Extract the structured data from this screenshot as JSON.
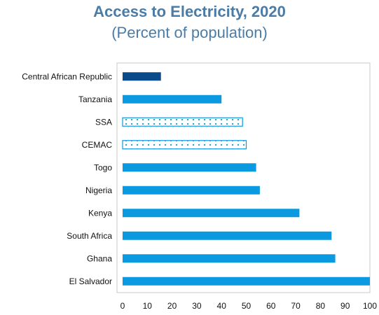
{
  "chart_data": {
    "type": "bar",
    "orientation": "horizontal",
    "title": "Access to Electricity, 2020",
    "subtitle": "(Percent of population)",
    "categories": [
      "Central African Republic",
      "Tanzania",
      "SSA",
      "CEMAC",
      "Togo",
      "Nigeria",
      "Kenya",
      "South Africa",
      "Ghana",
      "El Salvador"
    ],
    "values": [
      15.5,
      40,
      48.5,
      50,
      54,
      55.5,
      71.5,
      84.5,
      86,
      100
    ],
    "styles": [
      "dark",
      "solid",
      "dotted",
      "dotted",
      "solid",
      "solid",
      "solid",
      "solid",
      "solid",
      "solid"
    ],
    "xlim": [
      0,
      100
    ],
    "xticks": [
      0,
      10,
      20,
      30,
      40,
      50,
      60,
      70,
      80,
      90,
      100
    ],
    "grid": false,
    "colors": {
      "solid": "#0b9ae0",
      "dark": "#0a4a8a",
      "dotted_outline": "#0b9ae0",
      "title": "#4a7ca8",
      "frame": "#c8c8c8"
    }
  }
}
